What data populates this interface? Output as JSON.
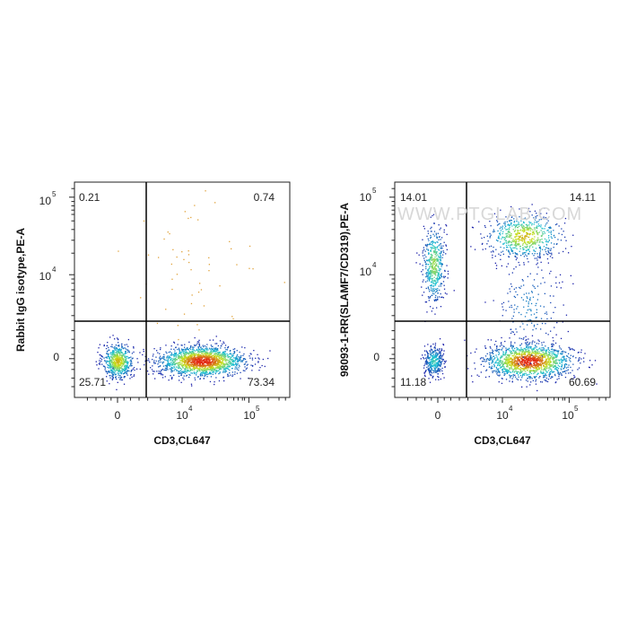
{
  "chart_data": [
    {
      "type": "scatter",
      "subtype": "flow-cytometry-density",
      "xlabel": "CD3,CL647",
      "ylabel": "Rabbit IgG isotype,PE-A",
      "x_ticks": [
        {
          "value": 0,
          "base": "0",
          "exp": ""
        },
        {
          "value": 10000,
          "base": "10",
          "exp": "4"
        },
        {
          "value": 100000,
          "base": "10",
          "exp": "5"
        }
      ],
      "y_ticks": [
        {
          "value": 0,
          "base": "0",
          "exp": ""
        },
        {
          "value": 10000,
          "base": "10",
          "exp": "4"
        },
        {
          "value": 100000,
          "base": "10",
          "exp": "5"
        }
      ],
      "quadrants": [
        {
          "position": "top-left",
          "percent": "0.21"
        },
        {
          "position": "top-right",
          "percent": "0.74"
        },
        {
          "position": "bottom-left",
          "percent": "25.71"
        },
        {
          "position": "bottom-right",
          "percent": "73.34"
        }
      ],
      "gate": {
        "x_display": 0.36,
        "y_display": 0.35
      },
      "populations": [
        {
          "name": "CD3-neg isotype-neg",
          "cx": 0.2,
          "cy": 0.17,
          "sx": 0.035,
          "sy": 0.04,
          "n": 650
        },
        {
          "name": "CD3-pos isotype-neg",
          "cx": 0.59,
          "cy": 0.17,
          "sx": 0.1,
          "sy": 0.035,
          "n": 1700
        },
        {
          "name": "sparse high",
          "cx": 0.5,
          "cy": 0.6,
          "sx": 0.15,
          "sy": 0.15,
          "n": 55
        }
      ]
    },
    {
      "type": "scatter",
      "subtype": "flow-cytometry-density",
      "xlabel": "CD3,CL647",
      "ylabel": "98093-1-RR(SLAMF7/CD319),PE-A",
      "x_ticks": [
        {
          "value": 0,
          "base": "0",
          "exp": ""
        },
        {
          "value": 10000,
          "base": "10",
          "exp": "4"
        },
        {
          "value": 100000,
          "base": "10",
          "exp": "5"
        }
      ],
      "y_ticks": [
        {
          "value": 0,
          "base": "0",
          "exp": ""
        },
        {
          "value": 10000,
          "base": "10",
          "exp": "4"
        },
        {
          "value": 100000,
          "base": "10",
          "exp": "5"
        }
      ],
      "quadrants": [
        {
          "position": "top-left",
          "percent": "14.01"
        },
        {
          "position": "top-right",
          "percent": "14.11"
        },
        {
          "position": "bottom-left",
          "percent": "11.18"
        },
        {
          "position": "bottom-right",
          "percent": "60.69"
        }
      ],
      "gate": {
        "x_display": 0.36,
        "y_display": 0.35
      },
      "populations": [
        {
          "name": "CD3-neg SLAMF7-pos",
          "cx": 0.18,
          "cy": 0.62,
          "sx": 0.025,
          "sy": 0.09,
          "n": 500
        },
        {
          "name": "CD3-neg SLAMF7-neg",
          "cx": 0.18,
          "cy": 0.17,
          "sx": 0.022,
          "sy": 0.035,
          "n": 350
        },
        {
          "name": "CD3-pos SLAMF7-pos",
          "cx": 0.6,
          "cy": 0.75,
          "sx": 0.085,
          "sy": 0.05,
          "n": 650
        },
        {
          "name": "CD3-pos SLAMF7-neg",
          "cx": 0.62,
          "cy": 0.17,
          "sx": 0.1,
          "sy": 0.04,
          "n": 1500
        },
        {
          "name": "CD3-pos bridge",
          "cx": 0.62,
          "cy": 0.42,
          "sx": 0.08,
          "sy": 0.12,
          "n": 180
        }
      ]
    }
  ],
  "watermark": "WWW.PTGLAB.COM",
  "colors": {
    "axis": "#222222",
    "gate": "#000000",
    "density_low": "#1a1aa8",
    "density_mid": "#19c2d6",
    "density_high": "#c8e21a",
    "density_peak": "#e32b14",
    "sparse": "#e0a23a"
  }
}
